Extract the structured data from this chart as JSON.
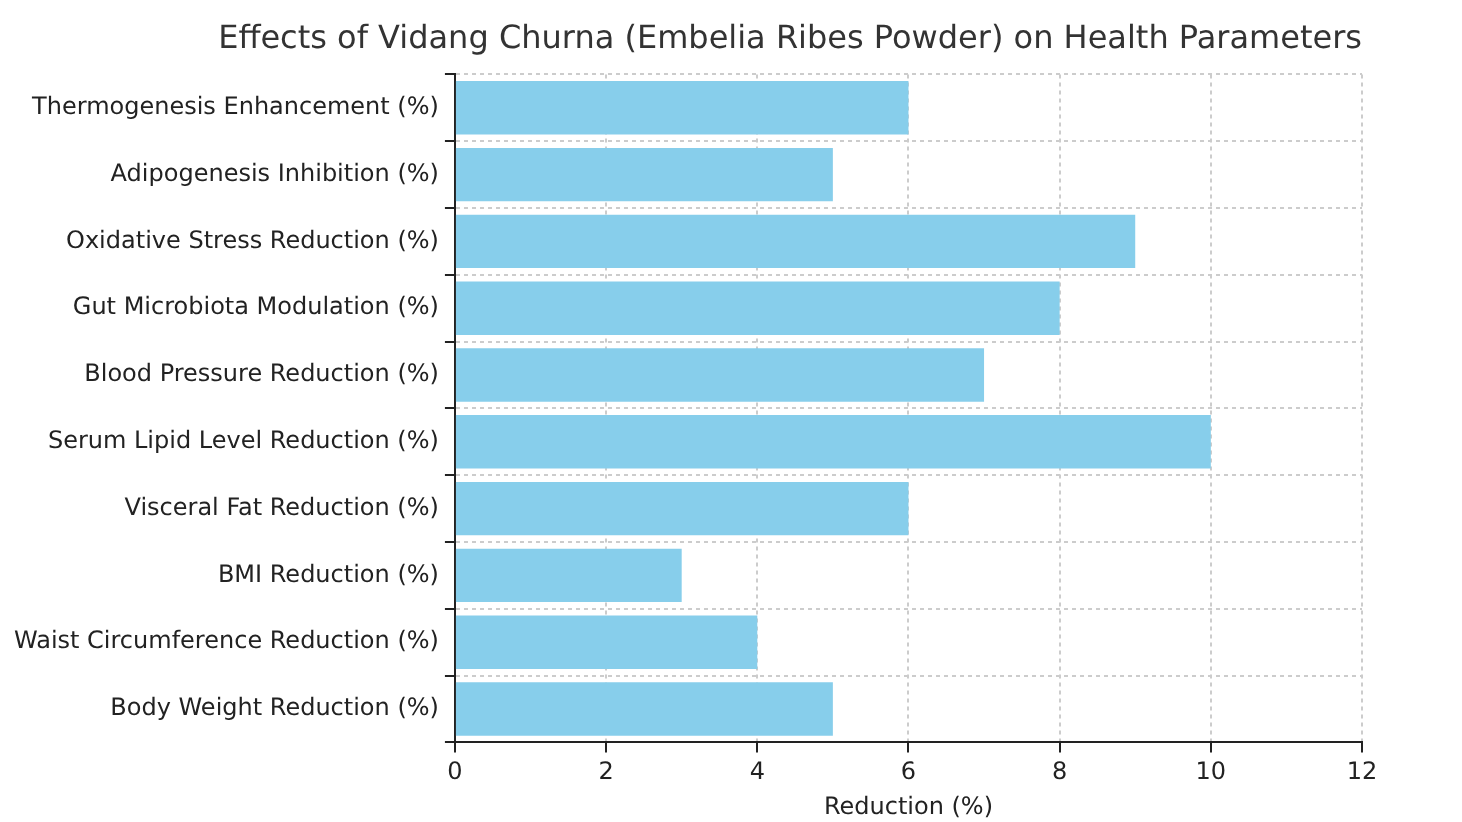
{
  "chart_data": {
    "type": "bar",
    "orientation": "horizontal",
    "title": "Effects of Vidang Churna (Embelia Ribes Powder) on Health Parameters",
    "xlabel": "Reduction (%)",
    "categories": [
      "Thermogenesis Enhancement (%)",
      "Adipogenesis Inhibition (%)",
      "Oxidative Stress Reduction (%)",
      "Gut Microbiota Modulation (%)",
      "Blood Pressure Reduction (%)",
      "Serum Lipid Level Reduction (%)",
      "Visceral Fat Reduction (%)",
      "BMI Reduction (%)",
      "Waist Circumference Reduction (%)",
      "Body Weight Reduction (%)"
    ],
    "values": [
      6,
      5,
      9,
      8,
      7,
      10,
      6,
      3,
      4,
      5
    ],
    "color": "#87ceeb",
    "xlim": [
      0,
      12
    ],
    "xticks": [
      0,
      2,
      4,
      6,
      8,
      10,
      12
    ],
    "grid": true
  }
}
